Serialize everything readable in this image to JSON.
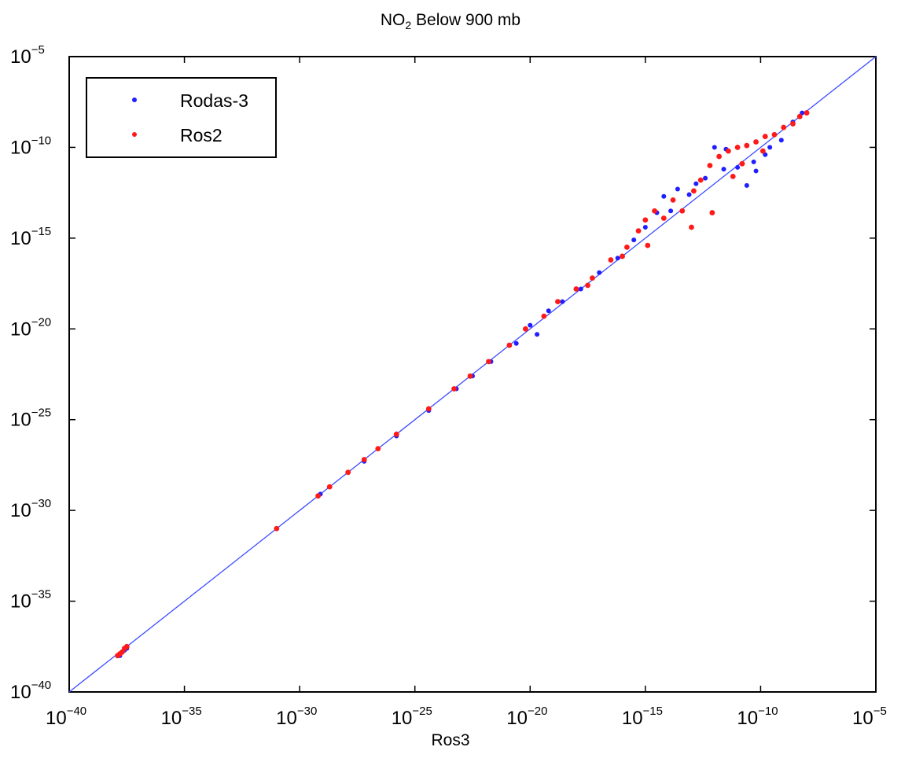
{
  "chart_data": {
    "type": "scatter",
    "title_main": "NO",
    "title_sub": "2",
    "title_rest": " Below 900 mb",
    "xlabel": "Ros3",
    "ylabel": "",
    "xscale": "log",
    "yscale": "log",
    "xlim": [
      1e-40,
      1e-05
    ],
    "ylim": [
      1e-40,
      1e-05
    ],
    "x_ticks": [
      {
        "base": "10",
        "exp": "−40"
      },
      {
        "base": "10",
        "exp": "−35"
      },
      {
        "base": "10",
        "exp": "−30"
      },
      {
        "base": "10",
        "exp": "−25"
      },
      {
        "base": "10",
        "exp": "−20"
      },
      {
        "base": "10",
        "exp": "−15"
      },
      {
        "base": "10",
        "exp": "−10"
      },
      {
        "base": "10",
        "exp": "−5"
      }
    ],
    "y_ticks": [
      {
        "base": "10",
        "exp": "−40"
      },
      {
        "base": "10",
        "exp": "−35"
      },
      {
        "base": "10",
        "exp": "−30"
      },
      {
        "base": "10",
        "exp": "−25"
      },
      {
        "base": "10",
        "exp": "−20"
      },
      {
        "base": "10",
        "exp": "−15"
      },
      {
        "base": "10",
        "exp": "−10"
      },
      {
        "base": "10",
        "exp": "−5"
      }
    ],
    "grid": false,
    "legend_position": "top-left",
    "reference_line": {
      "x": [
        -40,
        -5
      ],
      "y": [
        -40,
        -5
      ],
      "color": "#3b4cff"
    },
    "series": [
      {
        "name": "Rodas-3",
        "color": "#1f1fff",
        "log10_points": [
          [
            -37.8,
            -38.0
          ],
          [
            -37.7,
            -37.8
          ],
          [
            -37.6,
            -37.7
          ],
          [
            -37.5,
            -37.6
          ],
          [
            -31.0,
            -31.0
          ],
          [
            -29.1,
            -29.1
          ],
          [
            -28.7,
            -28.7
          ],
          [
            -27.9,
            -27.9
          ],
          [
            -27.2,
            -27.3
          ],
          [
            -26.6,
            -26.6
          ],
          [
            -25.8,
            -25.9
          ],
          [
            -24.4,
            -24.5
          ],
          [
            -23.2,
            -23.3
          ],
          [
            -22.5,
            -22.6
          ],
          [
            -21.7,
            -21.8
          ],
          [
            -20.6,
            -20.8
          ],
          [
            -20.0,
            -19.8
          ],
          [
            -19.7,
            -20.3
          ],
          [
            -19.2,
            -19.0
          ],
          [
            -18.6,
            -18.5
          ],
          [
            -17.8,
            -17.8
          ],
          [
            -17.0,
            -16.9
          ],
          [
            -16.2,
            -16.1
          ],
          [
            -15.5,
            -15.1
          ],
          [
            -15.0,
            -14.4
          ],
          [
            -14.5,
            -13.6
          ],
          [
            -14.2,
            -12.7
          ],
          [
            -13.6,
            -12.3
          ],
          [
            -13.1,
            -12.6
          ],
          [
            -12.4,
            -11.7
          ],
          [
            -12.0,
            -10.0
          ],
          [
            -11.5,
            -10.1
          ],
          [
            -11.0,
            -11.1
          ],
          [
            -10.6,
            -12.1
          ],
          [
            -10.2,
            -11.3
          ],
          [
            -9.6,
            -10.0
          ],
          [
            -9.1,
            -9.6
          ],
          [
            -8.6,
            -8.6
          ],
          [
            -8.2,
            -8.1
          ],
          [
            -10.3,
            -10.8
          ],
          [
            -9.8,
            -10.4
          ],
          [
            -11.6,
            -11.2
          ],
          [
            -12.8,
            -12.0
          ],
          [
            -13.9,
            -13.5
          ]
        ]
      },
      {
        "name": "Ros2",
        "color": "#ff1a1a",
        "log10_points": [
          [
            -37.8,
            -37.9
          ],
          [
            -37.7,
            -37.8
          ],
          [
            -37.6,
            -37.6
          ],
          [
            -37.5,
            -37.5
          ],
          [
            -37.9,
            -38.0
          ],
          [
            -31.0,
            -31.0
          ],
          [
            -29.2,
            -29.2
          ],
          [
            -28.7,
            -28.7
          ],
          [
            -27.9,
            -27.9
          ],
          [
            -27.2,
            -27.2
          ],
          [
            -26.6,
            -26.6
          ],
          [
            -25.8,
            -25.8
          ],
          [
            -24.4,
            -24.4
          ],
          [
            -23.3,
            -23.3
          ],
          [
            -22.6,
            -22.6
          ],
          [
            -21.8,
            -21.8
          ],
          [
            -20.9,
            -20.9
          ],
          [
            -20.2,
            -20.0
          ],
          [
            -19.4,
            -19.3
          ],
          [
            -18.8,
            -18.5
          ],
          [
            -18.0,
            -17.8
          ],
          [
            -17.3,
            -17.2
          ],
          [
            -16.5,
            -16.2
          ],
          [
            -15.8,
            -15.5
          ],
          [
            -15.3,
            -14.6
          ],
          [
            -15.0,
            -14.0
          ],
          [
            -14.6,
            -13.5
          ],
          [
            -14.2,
            -13.9
          ],
          [
            -13.8,
            -12.9
          ],
          [
            -13.4,
            -13.5
          ],
          [
            -12.9,
            -12.4
          ],
          [
            -12.6,
            -11.8
          ],
          [
            -12.2,
            -11.0
          ],
          [
            -11.8,
            -10.5
          ],
          [
            -11.4,
            -10.2
          ],
          [
            -11.0,
            -10.0
          ],
          [
            -10.6,
            -9.9
          ],
          [
            -10.2,
            -9.7
          ],
          [
            -9.8,
            -9.4
          ],
          [
            -9.4,
            -9.3
          ],
          [
            -9.0,
            -8.9
          ],
          [
            -8.6,
            -8.7
          ],
          [
            -8.3,
            -8.3
          ],
          [
            -8.0,
            -8.1
          ],
          [
            -12.1,
            -13.6
          ],
          [
            -13.0,
            -14.4
          ],
          [
            -11.2,
            -11.6
          ],
          [
            -10.8,
            -10.9
          ],
          [
            -9.9,
            -10.2
          ],
          [
            -14.9,
            -15.4
          ],
          [
            -16.0,
            -16.0
          ],
          [
            -17.5,
            -17.6
          ]
        ]
      }
    ]
  }
}
